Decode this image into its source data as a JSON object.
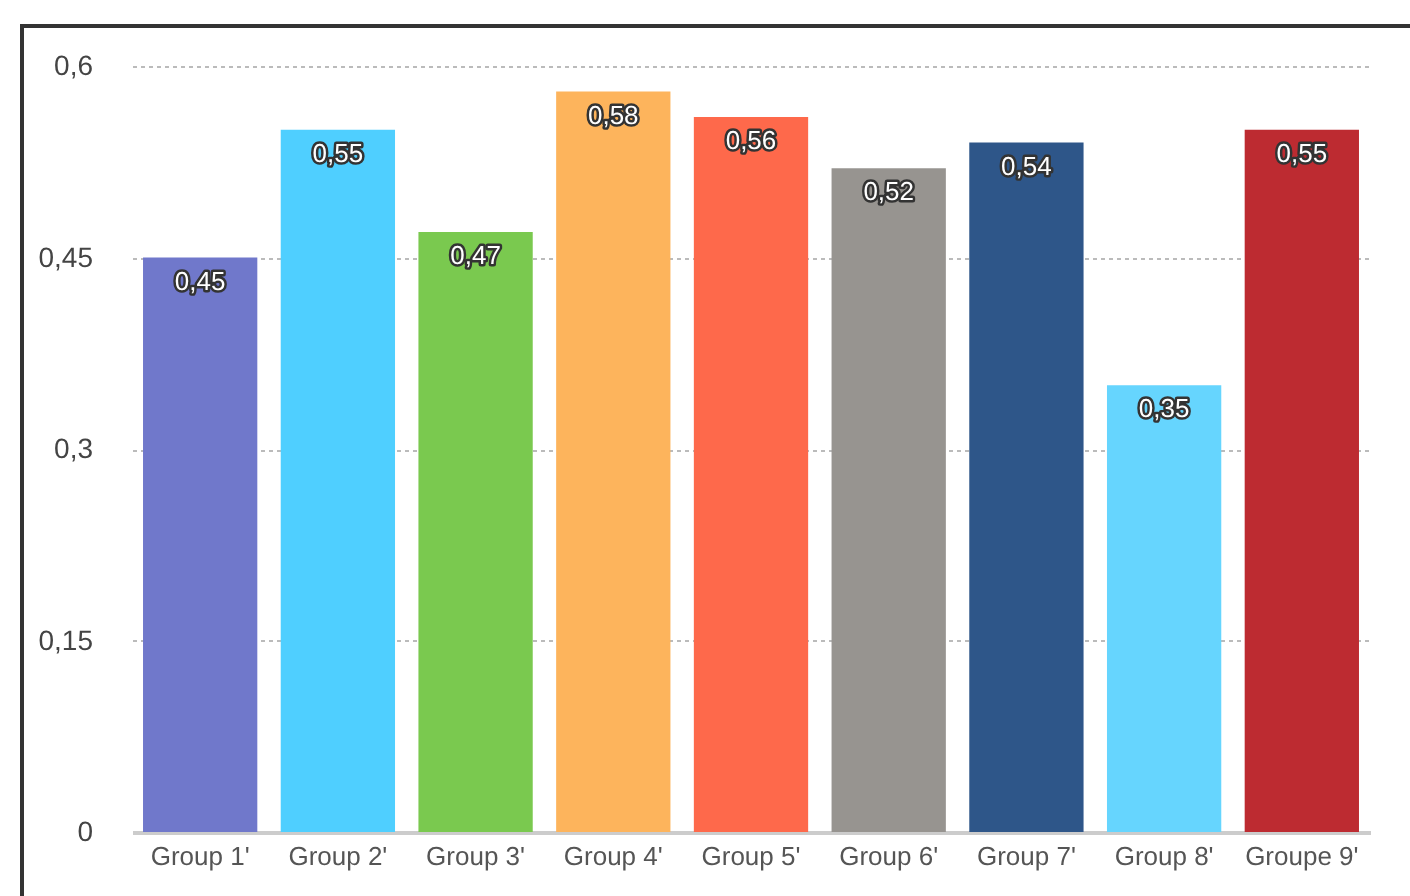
{
  "chart_data": {
    "type": "bar",
    "categories": [
      "Group 1'",
      "Group 2'",
      "Group 3'",
      "Group 4'",
      "Group 5'",
      "Group 6'",
      "Group 7'",
      "Group 8'",
      "Groupe 9'"
    ],
    "values": [
      0.45,
      0.55,
      0.47,
      0.58,
      0.56,
      0.52,
      0.54,
      0.35,
      0.55
    ],
    "colors": [
      "#7078cb",
      "#4fcfff",
      "#7ac94f",
      "#fdb45c",
      "#fe694b",
      "#979490",
      "#2e5689",
      "#66d5fe",
      "#bd2b31"
    ],
    "value_labels": [
      "0,45",
      "0,55",
      "0,47",
      "0,58",
      "0,56",
      "0,52",
      "0,54",
      "0,35",
      "0,55"
    ],
    "ylim": [
      0,
      0.6
    ],
    "yticks": [
      {
        "value": 0,
        "label": "0"
      },
      {
        "value": 0.15,
        "label": "0,15"
      },
      {
        "value": 0.3,
        "label": "0,3"
      },
      {
        "value": 0.45,
        "label": "0,45"
      },
      {
        "value": 0.6,
        "label": "0,6"
      }
    ],
    "grid": "y"
  }
}
